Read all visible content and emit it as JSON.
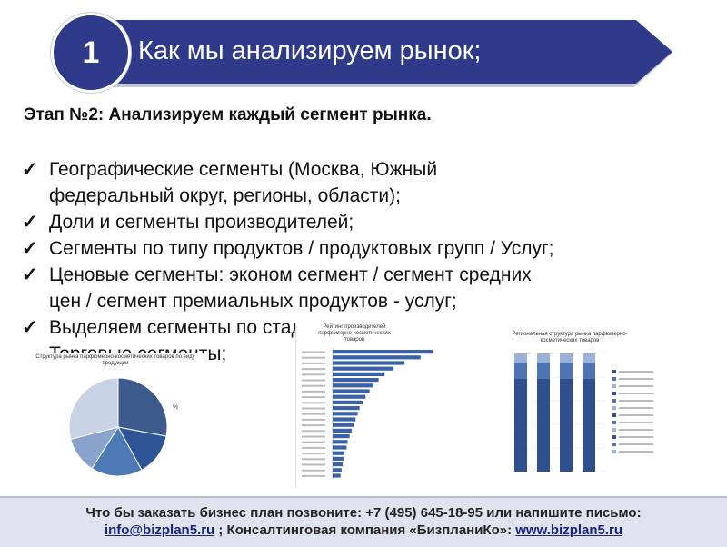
{
  "header": {
    "badge": "1",
    "title": "Как мы анализируем рынок;"
  },
  "stage_heading": "Этап №2: Анализируем каждый сегмент рынка.",
  "bullets": [
    {
      "line1": "Географические сегменты (Москва, Южный",
      "line2": "федеральный округ, регионы, области);"
    },
    {
      "line1": "Доли и сегменты производителей;",
      "line2": ""
    },
    {
      "line1": "Сегменты по типу продуктов / продуктовых групп / Услуг;",
      "line2": ""
    },
    {
      "line1": "Ценовые сегменты: эконом сегмент / сегмент средних",
      "line2": "цен / сегмент премиальных продуктов - услуг;"
    },
    {
      "line1": "Выделяем сегменты по стадии зрелости;",
      "line2": "Торговые сегменты;"
    }
  ],
  "charts": {
    "pie": {
      "title": "Структура рынка парфюмерно-косметических товаров по виду продукции",
      "legend_note": "%",
      "slices": [
        0.28,
        0.14,
        0.17,
        0.12,
        0.29
      ],
      "colors": [
        "#3d5a8c",
        "#2e5596",
        "#4d79b5",
        "#8aa3cc",
        "#c9d3e6"
      ]
    },
    "hbar": {
      "title": "Рейтинг производителей парфюмерно-косметических товаров",
      "values": [
        100,
        88,
        72,
        61,
        52,
        46,
        41,
        37,
        33,
        30,
        27,
        25,
        23,
        21,
        19,
        17,
        15,
        14,
        12,
        11,
        10,
        9,
        8
      ],
      "color": "#3b62a8"
    },
    "stack": {
      "title": "Региональная структура рынка парфюмерно-косметических товаров",
      "columns": 4,
      "colors": [
        "#2f4f8f",
        "#4f74b3",
        "#9bb1d6"
      ]
    }
  },
  "footer": {
    "line1": "Что бы заказать бизнес план позвоните: +7 (495) 645-18-95 или напишите письмо:",
    "email": "info@bizplan5.ru",
    "sep": " ; Консалтинговая компания «БизпланиКо»: ",
    "site": "www.bizplan5.ru"
  },
  "colors": {
    "banner": "#2f3a8a",
    "footer_bg": "#dfe3ef"
  }
}
